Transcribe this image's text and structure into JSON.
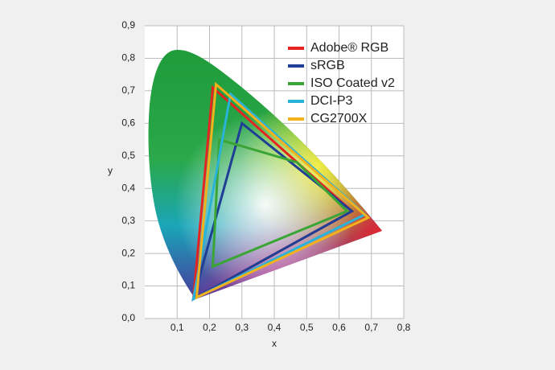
{
  "chart_data": {
    "type": "polygon",
    "x_label": "x",
    "y_label": "y",
    "xlim": [
      0,
      0.8
    ],
    "ylim": [
      0,
      0.9
    ],
    "xticks": [
      {
        "value": 0.1,
        "label": "0,1"
      },
      {
        "value": 0.2,
        "label": "0,2"
      },
      {
        "value": 0.3,
        "label": "0,3"
      },
      {
        "value": 0.4,
        "label": "0,4"
      },
      {
        "value": 0.5,
        "label": "0,5"
      },
      {
        "value": 0.6,
        "label": "0,6"
      },
      {
        "value": 0.7,
        "label": "0,7"
      },
      {
        "value": 0.8,
        "label": "0,8"
      }
    ],
    "yticks": [
      {
        "value": 0,
        "label": "0,0"
      },
      {
        "value": 0.1,
        "label": "0,1"
      },
      {
        "value": 0.2,
        "label": "0,2"
      },
      {
        "value": 0.3,
        "label": "0,3"
      },
      {
        "value": 0.4,
        "label": "0,4"
      },
      {
        "value": 0.5,
        "label": "0,5"
      },
      {
        "value": 0.6,
        "label": "0,6"
      },
      {
        "value": 0.7,
        "label": "0,7"
      },
      {
        "value": 0.8,
        "label": "0,8"
      },
      {
        "value": 0.9,
        "label": "0,9"
      }
    ],
    "grid": true,
    "legend": "top-right",
    "series": [
      {
        "name": "Adobe® RGB",
        "color": "#e52421",
        "x": [
          0.64,
          0.21,
          0.15
        ],
        "values": [
          0.33,
          0.71,
          0.06
        ]
      },
      {
        "name": "sRGB",
        "color": "#1f3f96",
        "x": [
          0.64,
          0.3,
          0.15
        ],
        "values": [
          0.33,
          0.6,
          0.06
        ]
      },
      {
        "name": "ISO Coated v2",
        "color": "#3aa535",
        "x": [
          0.23,
          0.3,
          0.47,
          0.625,
          0.21
        ],
        "values": [
          0.55,
          0.53,
          0.48,
          0.33,
          0.16
        ]
      },
      {
        "name": "DCI-P3",
        "color": "#2ab3d8",
        "x": [
          0.68,
          0.265,
          0.15
        ],
        "values": [
          0.32,
          0.69,
          0.06
        ]
      },
      {
        "name": "CG2700X",
        "color": "#f2b21c",
        "x": [
          0.69,
          0.22,
          0.16
        ],
        "values": [
          0.31,
          0.72,
          0.065
        ]
      }
    ]
  }
}
